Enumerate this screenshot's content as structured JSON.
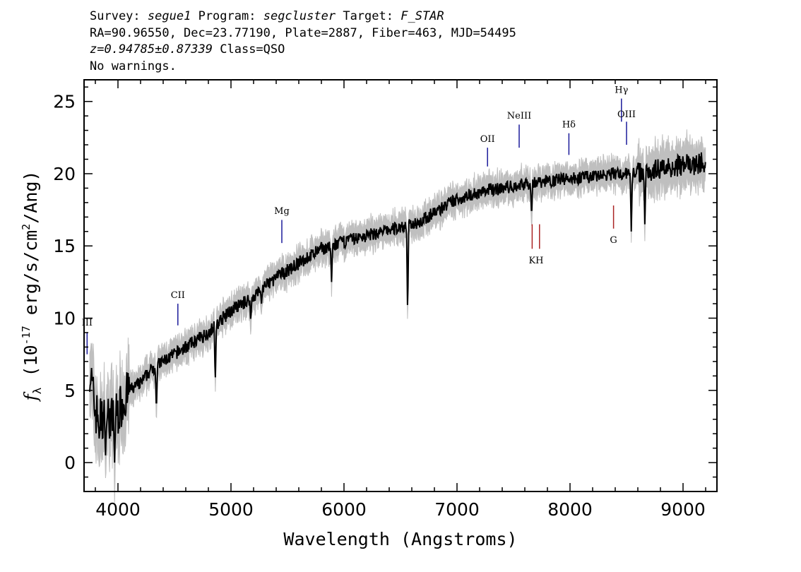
{
  "header": {
    "line1": {
      "survey_label": "Survey:",
      "survey": "segue1",
      "program_label": "Program:",
      "program": "segcluster",
      "target_label": "Target:",
      "target": "F_STAR"
    },
    "line2": "RA=90.96550, Dec=23.77190, Plate=2887, Fiber=463, MJD=54495",
    "line3": {
      "redshift": "z=0.94785±0.87339",
      "class": "Class=QSO"
    },
    "line4": "No warnings."
  },
  "chart_data": {
    "type": "line",
    "xlabel": "Wavelength (Angstroms)",
    "ylabel": "f_λ (10^-17 erg/s/cm^2/Ang)",
    "xlim": [
      3700,
      9300
    ],
    "ylim": [
      -2,
      26.5
    ],
    "xticks": [
      4000,
      5000,
      6000,
      7000,
      8000,
      9000
    ],
    "yticks": [
      0,
      5,
      10,
      15,
      20,
      25
    ],
    "grid": false,
    "colors": {
      "flux": "#000000",
      "error_band": "#bfbfbf",
      "emission_lines": "#1a1a9a",
      "absorption_lines": "#aa2222"
    },
    "series": [
      {
        "x": [
          3750,
          3800,
          3850,
          3900,
          3950,
          4000,
          4100,
          4200,
          4300,
          4400,
          4500,
          4600,
          4700,
          4800,
          4900,
          5000,
          5100,
          5200,
          5300,
          5400,
          5500,
          5600,
          5700,
          5800,
          5900,
          6000,
          6100,
          6200,
          6300,
          6400,
          6500,
          6600,
          6700,
          6800,
          6900,
          7000,
          7100,
          7200,
          7300,
          7400,
          7500,
          7600,
          7700,
          7800,
          7900,
          8000,
          8100,
          8200,
          8300,
          8400,
          8500,
          8600,
          8700,
          8800,
          8900,
          9000,
          9100,
          9200
        ],
        "y": [
          6.5,
          3.5,
          3.0,
          3.2,
          3.0,
          3.5,
          5.0,
          5.5,
          6.5,
          7.0,
          7.5,
          8.0,
          8.5,
          9.0,
          9.8,
          10.5,
          11.0,
          11.5,
          12.2,
          12.8,
          13.3,
          13.8,
          14.3,
          14.8,
          15.0,
          15.3,
          15.5,
          15.7,
          15.9,
          16.1,
          16.3,
          16.5,
          16.8,
          17.3,
          17.8,
          18.2,
          18.5,
          18.7,
          18.9,
          19.0,
          19.1,
          19.3,
          19.4,
          19.5,
          19.6,
          19.7,
          19.7,
          19.8,
          19.9,
          20.0,
          20.0,
          20.1,
          20.2,
          20.4,
          20.5,
          20.6,
          20.6,
          20.8
        ]
      }
    ],
    "absorption_features": [
      {
        "x": 3835,
        "y": 1.5
      },
      {
        "x": 3890,
        "y": 0.5
      },
      {
        "x": 3970,
        "y": 0.0
      },
      {
        "x": 4340,
        "y": 3.5
      },
      {
        "x": 4861,
        "y": 5.5
      },
      {
        "x": 5175,
        "y": 9.8
      },
      {
        "x": 5270,
        "y": 11.0
      },
      {
        "x": 5890,
        "y": 12.5
      },
      {
        "x": 6563,
        "y": 10.3
      },
      {
        "x": 7660,
        "y": 17.0
      },
      {
        "x": 8542,
        "y": 16.0
      },
      {
        "x": 8662,
        "y": 16.5
      }
    ],
    "line_markers": [
      {
        "label": "III",
        "x": 3727,
        "y1": 7.5,
        "y2": 9.0,
        "text_y": 9.5,
        "type": "emission"
      },
      {
        "label": "CII",
        "x": 4530,
        "y1": 9.5,
        "y2": 11.0,
        "text_y": 11.4,
        "type": "emission"
      },
      {
        "label": "Mg",
        "x": 5450,
        "y1": 15.2,
        "y2": 16.8,
        "text_y": 17.2,
        "type": "emission"
      },
      {
        "label": "OII",
        "x": 7270,
        "y1": 20.5,
        "y2": 21.8,
        "text_y": 22.2,
        "type": "emission"
      },
      {
        "label": "NeIII",
        "x": 7550,
        "y1": 21.8,
        "y2": 23.4,
        "text_y": 23.8,
        "type": "emission"
      },
      {
        "label": "Hδ",
        "x": 7990,
        "y1": 21.3,
        "y2": 22.8,
        "text_y": 23.2,
        "type": "emission"
      },
      {
        "label": "Hγ",
        "x": 8455,
        "y1": 23.6,
        "y2": 25.2,
        "text_y": 25.6,
        "type": "emission"
      },
      {
        "label": "OIII",
        "x": 8500,
        "y1": 22.0,
        "y2": 23.6,
        "text_y": 23.9,
        "type": "emission"
      },
      {
        "label": "K",
        "x": 7665,
        "y1": 16.5,
        "y2": 14.8,
        "text_y": 13.8,
        "type": "absorption"
      },
      {
        "label": "H",
        "x": 7730,
        "y1": 16.5,
        "y2": 14.8,
        "text_y": 13.8,
        "type": "absorption"
      },
      {
        "label": "G",
        "x": 8385,
        "y1": 17.8,
        "y2": 16.2,
        "text_y": 15.2,
        "type": "absorption"
      }
    ]
  }
}
